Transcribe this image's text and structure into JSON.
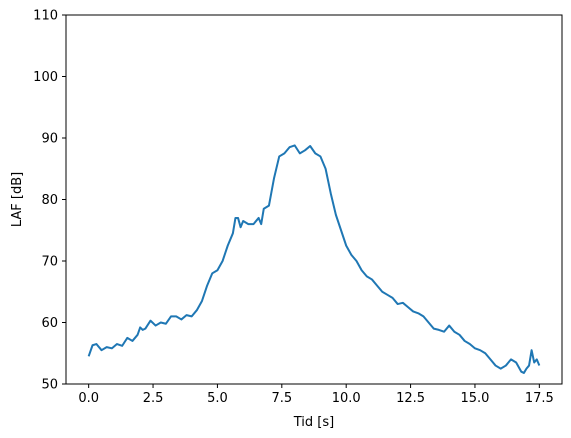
{
  "chart_data": {
    "type": "line",
    "title": "",
    "xlabel": "Tid [s]",
    "ylabel": "LAF [dB]",
    "xlim": [
      -0.88,
      18.38
    ],
    "ylim": [
      50,
      110
    ],
    "xticks": [
      0.0,
      2.5,
      5.0,
      7.5,
      10.0,
      12.5,
      15.0,
      17.5
    ],
    "xtick_labels": [
      "0.0",
      "2.5",
      "5.0",
      "7.5",
      "10.0",
      "12.5",
      "15.0",
      "17.5"
    ],
    "yticks": [
      50,
      60,
      70,
      80,
      90,
      100,
      110
    ],
    "ytick_labels": [
      "50",
      "60",
      "70",
      "80",
      "90",
      "100",
      "110"
    ],
    "grid": false,
    "legend": "none",
    "line_color": "#1f77b4",
    "series": [
      {
        "x": [
          0.0,
          0.15,
          0.3,
          0.5,
          0.7,
          0.9,
          1.1,
          1.3,
          1.5,
          1.7,
          1.9,
          2.0,
          2.1,
          2.2,
          2.4,
          2.6,
          2.8,
          3.0,
          3.2,
          3.4,
          3.6,
          3.8,
          4.0,
          4.2,
          4.4,
          4.6,
          4.8,
          5.0,
          5.2,
          5.4,
          5.6,
          5.7,
          5.8,
          5.9,
          6.0,
          6.2,
          6.4,
          6.6,
          6.7,
          6.8,
          7.0,
          7.2,
          7.4,
          7.6,
          7.8,
          8.0,
          8.2,
          8.4,
          8.6,
          8.8,
          9.0,
          9.2,
          9.4,
          9.6,
          9.8,
          10.0,
          10.2,
          10.4,
          10.6,
          10.8,
          11.0,
          11.2,
          11.4,
          11.6,
          11.8,
          12.0,
          12.2,
          12.4,
          12.6,
          12.8,
          13.0,
          13.2,
          13.4,
          13.6,
          13.8,
          14.0,
          14.2,
          14.4,
          14.6,
          14.8,
          15.0,
          15.2,
          15.4,
          15.6,
          15.8,
          16.0,
          16.2,
          16.4,
          16.6,
          16.8,
          16.9,
          17.0,
          17.1,
          17.2,
          17.3,
          17.4,
          17.5
        ],
        "y": [
          54.5,
          56.3,
          56.5,
          55.5,
          56.0,
          55.8,
          56.5,
          56.2,
          57.5,
          57.0,
          58.0,
          59.2,
          58.8,
          59.0,
          60.3,
          59.5,
          60.0,
          59.8,
          61.0,
          61.0,
          60.5,
          61.2,
          61.0,
          62.0,
          63.5,
          66.0,
          68.0,
          68.5,
          70.0,
          72.5,
          74.5,
          77.0,
          77.0,
          75.5,
          76.5,
          76.0,
          76.0,
          77.0,
          76.0,
          78.5,
          79.0,
          83.5,
          87.0,
          87.5,
          88.5,
          88.8,
          87.5,
          88.0,
          88.7,
          87.5,
          87.0,
          85.0,
          81.0,
          77.5,
          75.0,
          72.5,
          71.0,
          70.0,
          68.5,
          67.5,
          67.0,
          66.0,
          65.0,
          64.5,
          64.0,
          63.0,
          63.2,
          62.5,
          61.8,
          61.5,
          61.0,
          60.0,
          59.0,
          58.8,
          58.5,
          59.5,
          58.5,
          58.0,
          57.0,
          56.5,
          55.8,
          55.5,
          55.0,
          54.0,
          53.0,
          52.5,
          53.0,
          54.0,
          53.5,
          52.0,
          51.8,
          52.5,
          53.0,
          55.5,
          53.5,
          54.0,
          53.0
        ]
      }
    ]
  }
}
